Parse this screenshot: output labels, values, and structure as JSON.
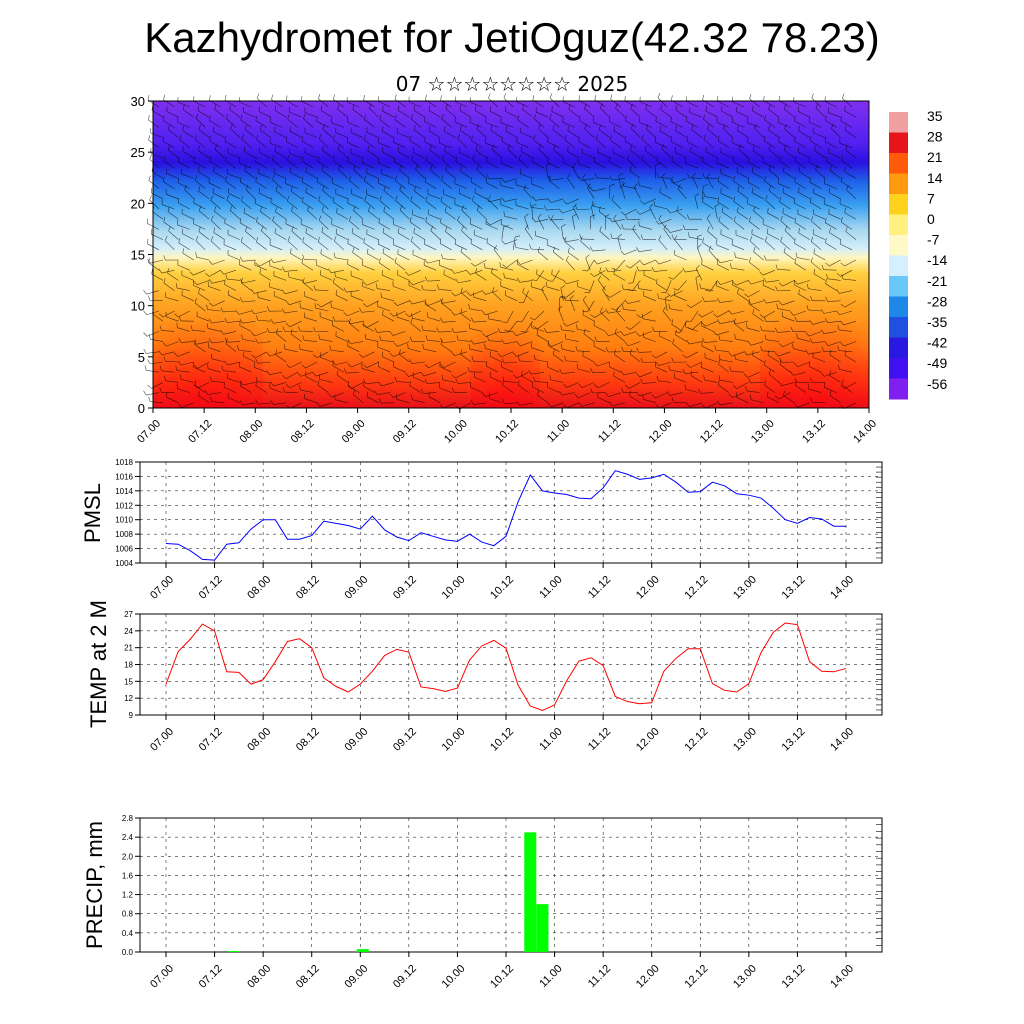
{
  "header": {
    "title": "Kazhydromet for JetiOguz(42.32 78.23)",
    "subtitle": "07 ☆☆☆☆☆☆☆☆ 2025"
  },
  "time_labels": [
    "07.00",
    "07.12",
    "08.00",
    "08.12",
    "09.00",
    "09.12",
    "10.00",
    "10.12",
    "11.00",
    "11.12",
    "12.00",
    "12.12",
    "13.00",
    "13.12",
    "14.00"
  ],
  "chart_data": [
    {
      "type": "heatmap",
      "ylim": [
        0,
        30
      ],
      "y_ticks": [
        0,
        5,
        10,
        15,
        20,
        25,
        30
      ],
      "colorbar": {
        "labels": [
          "35",
          "28",
          "21",
          "14",
          "7",
          "0",
          "-7",
          "-14",
          "-21",
          "-28",
          "-35",
          "-42",
          "-49",
          "-56"
        ],
        "colors": [
          "#f0a0a0",
          "#e8141c",
          "#ff5a0a",
          "#ff9a10",
          "#ffd21e",
          "#fff080",
          "#fff9c8",
          "#d4f0ff",
          "#68c8f8",
          "#1e88e8",
          "#2050e0",
          "#2818e0",
          "#4010f0",
          "#8020f0"
        ]
      },
      "note": "Temperature cross-section with wind barbs"
    },
    {
      "type": "line",
      "ylabel": "PMSL",
      "ylim": [
        1004,
        1018
      ],
      "y_ticks": [
        1004,
        1006,
        1008,
        1010,
        1012,
        1014,
        1016,
        1018
      ],
      "color": "#0000ff",
      "values": [
        1006.7,
        1006.6,
        1005.7,
        1004.5,
        1004.4,
        1006.6,
        1006.8,
        1008.7,
        1010,
        1010,
        1007.3,
        1007.3,
        1007.8,
        1009.8,
        1009.5,
        1009.2,
        1008.7,
        1010.5,
        1008.6,
        1007.6,
        1007.1,
        1008.2,
        1007.7,
        1007.2,
        1007,
        1008,
        1006.9,
        1006.4,
        1007.7,
        1012.5,
        1016.2,
        1014,
        1013.7,
        1013.5,
        1013,
        1012.9,
        1014.4,
        1016.8,
        1016.3,
        1015.6,
        1015.8,
        1016.3,
        1015.2,
        1013.8,
        1013.9,
        1015.2,
        1014.7,
        1013.6,
        1013.4,
        1013,
        1011.6,
        1010,
        1009.5,
        1010.3,
        1010.1,
        1009.1,
        1009.1
      ]
    },
    {
      "type": "line",
      "ylabel": "TEMP at 2 M",
      "ylim": [
        9,
        27
      ],
      "y_ticks": [
        9,
        12,
        15,
        18,
        21,
        24,
        27
      ],
      "color": "#ff0000",
      "values": [
        14.5,
        20.3,
        22.5,
        25.2,
        24,
        16.7,
        16.6,
        14.5,
        15.3,
        18.5,
        22.1,
        22.6,
        21,
        15.6,
        14.1,
        13.1,
        14.5,
        16.8,
        19.6,
        20.7,
        20.2,
        14,
        13.7,
        13.2,
        13.8,
        18.8,
        21.3,
        22.3,
        20.9,
        14.3,
        10.6,
        9.8,
        10.8,
        15.1,
        18.6,
        19.2,
        17.8,
        12.3,
        11.4,
        11,
        11.2,
        16.8,
        19.1,
        20.8,
        20.8,
        14.6,
        13.4,
        13.1,
        14.6,
        20.1,
        23.7,
        25.4,
        25.1,
        18.5,
        16.8,
        16.7,
        17.3
      ]
    },
    {
      "type": "bar",
      "ylabel": "PRECIP, mm",
      "ylim": [
        0,
        2.8
      ],
      "y_ticks": [
        "0.0",
        "0.4",
        "0.8",
        "1.2",
        "1.6",
        "2.0",
        "2.4",
        "2.8"
      ],
      "color": "#00ff00",
      "categories": [
        "10.12",
        "10.15",
        "09.00",
        "07.18"
      ],
      "values": [
        2.5,
        1.0,
        0.06,
        0.02
      ]
    }
  ]
}
